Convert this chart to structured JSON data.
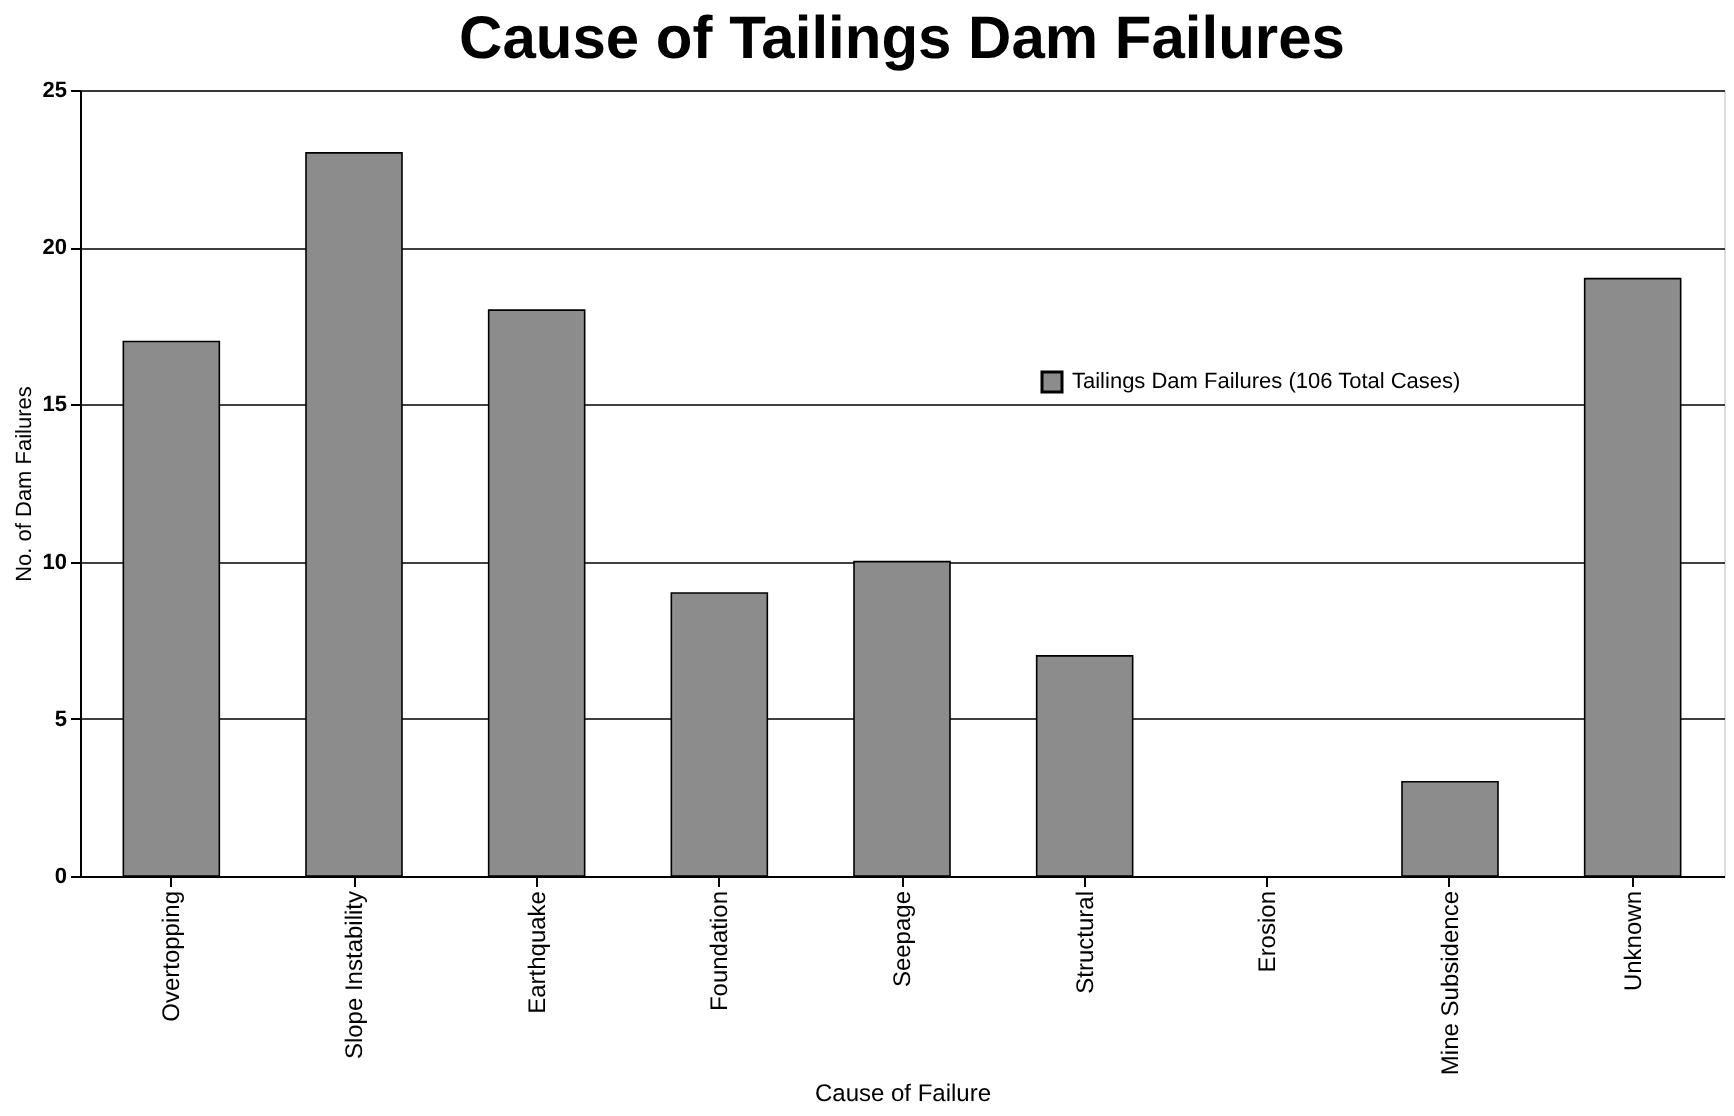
{
  "chart_data": {
    "type": "bar",
    "title": "Cause of Tailings Dam Failures",
    "xlabel": "Cause of Failure",
    "ylabel": "No. of Dam Failures",
    "categories": [
      "Overtopping",
      "Slope Instability",
      "Earthquake",
      "Foundation",
      "Seepage",
      "Structural",
      "Erosion",
      "Mine Subsidence",
      "Unknown"
    ],
    "series": [
      {
        "name": "Tailings Dam Failures (106 Total Cases)",
        "color": "#8c8c8c",
        "values": [
          17,
          23,
          18,
          9,
          10,
          7,
          0,
          3,
          19
        ]
      }
    ],
    "ylim": [
      0,
      25
    ],
    "yticks": [
      0,
      5,
      10,
      15,
      20,
      25
    ],
    "grid": "y",
    "legend": "top right"
  }
}
